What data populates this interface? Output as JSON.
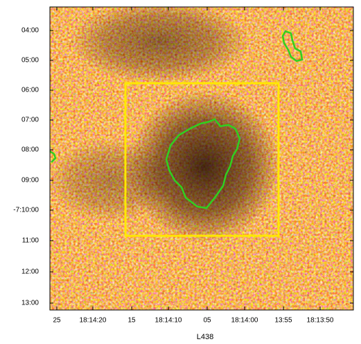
{
  "figure": {
    "title": "L438",
    "y_labels": [
      "04:00",
      "05:00",
      "06:00",
      "07:00",
      "08:00",
      "09:00",
      "-7:10:00",
      "11:00",
      "12:00",
      "13:00"
    ],
    "x_labels": [
      "25",
      "18:14:20",
      "15",
      "18:14:10",
      "05",
      "18:14:00",
      "13:55",
      "18:13:50"
    ]
  }
}
